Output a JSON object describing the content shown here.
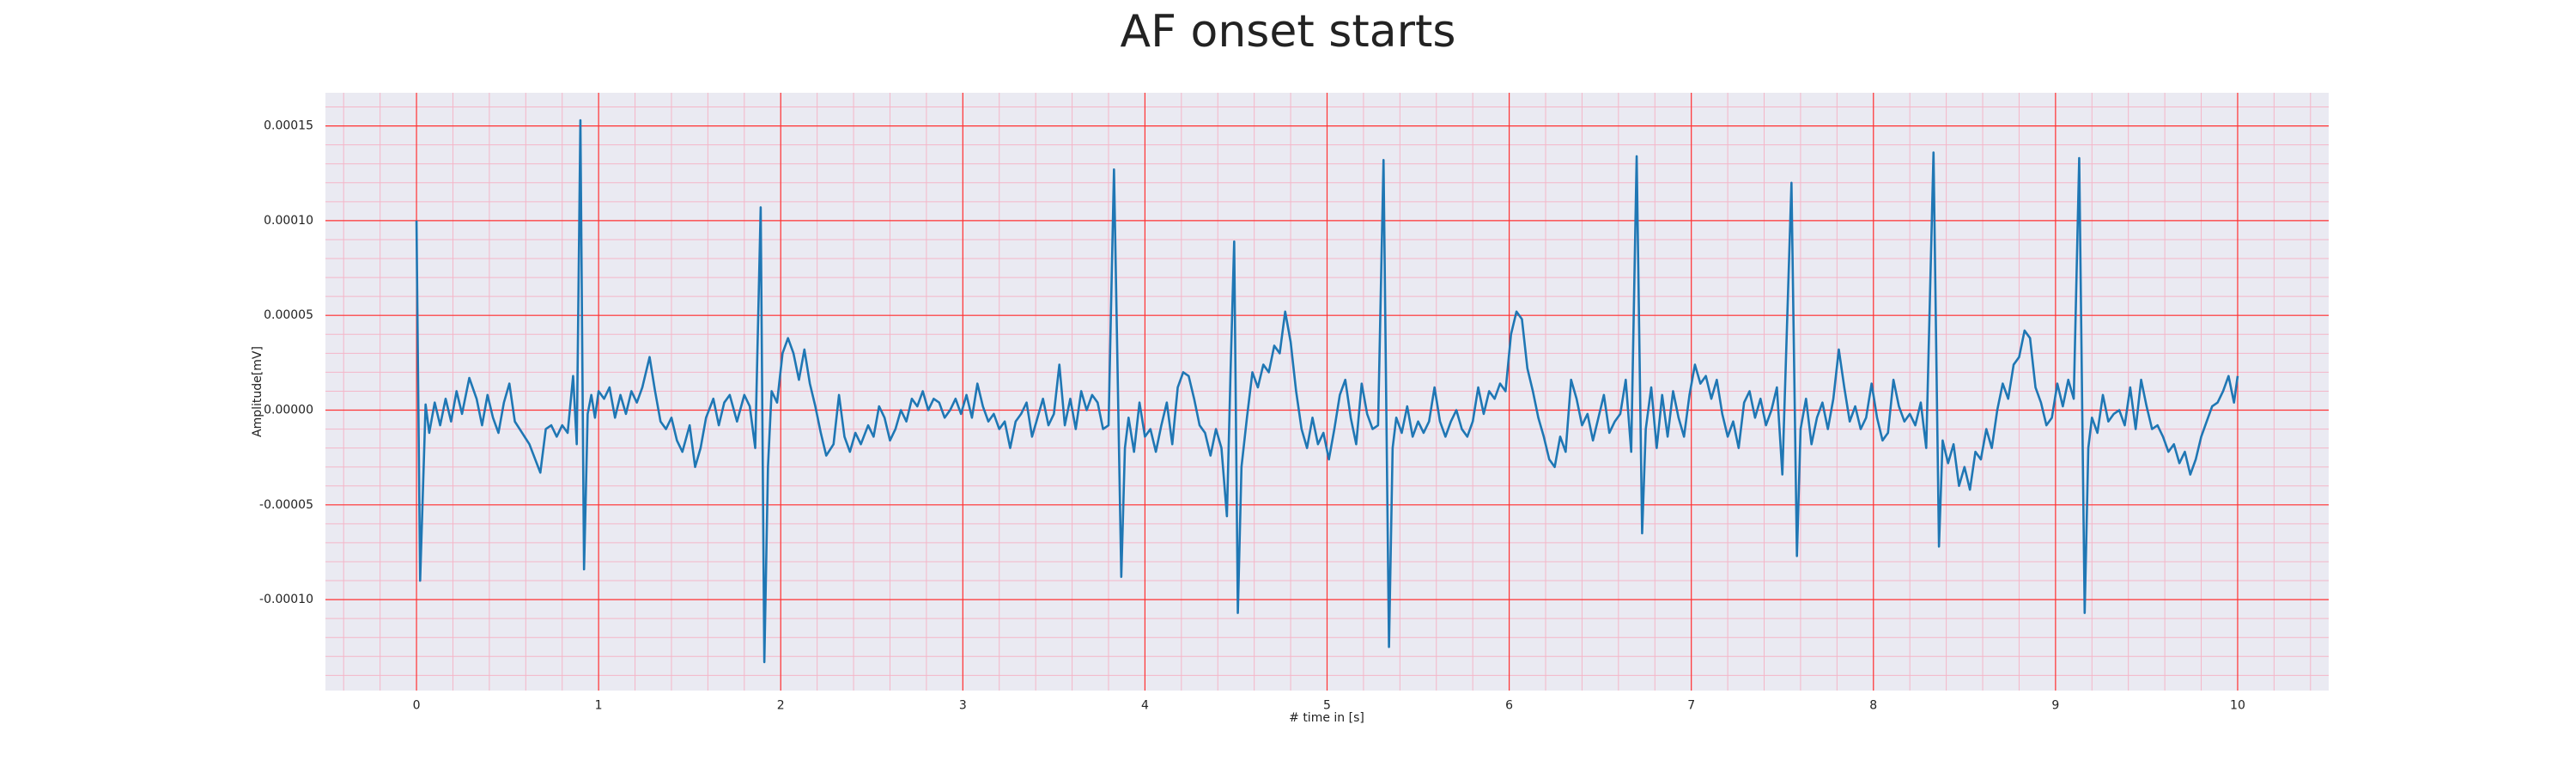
{
  "chart_data": {
    "type": "line",
    "title": "AF onset starts",
    "xlabel": "# time in [s]",
    "ylabel": "Amplitude[mV]",
    "color": "#1f77b4",
    "grid": true,
    "grid_color": "#ff3333",
    "minor_grid_color": "#f4b6c8",
    "background": "#eaeaf2",
    "xlim": [
      -0.5,
      10.5
    ],
    "ylim": [
      -0.000148,
      0.0001675
    ],
    "xticks": [
      0,
      1,
      2,
      3,
      4,
      5,
      6,
      7,
      8,
      9,
      10
    ],
    "yticks": [
      {
        "value": -0.0001,
        "label": "-0.00010"
      },
      -5e-05,
      {
        "value": 0,
        "label": "0.00000"
      },
      5e-05,
      {
        "value": 0.0001,
        "label": "0.00010"
      },
      0.00015
    ],
    "xminor_ticks": [
      -0.4,
      -0.2,
      0,
      0.2,
      0.4,
      0.6,
      0.8,
      1,
      1.2,
      1.4,
      1.6,
      1.8,
      2,
      2.2,
      2.4,
      2.6,
      2.8,
      3,
      3.2,
      3.4,
      3.6,
      3.8,
      4,
      4.2,
      4.4,
      4.6,
      4.8,
      5,
      5.2,
      5.4,
      5.6,
      5.8,
      6,
      6.2,
      6.4,
      6.6,
      6.8,
      7,
      7.2,
      7.4,
      7.6,
      7.8,
      8,
      8.2,
      8.4,
      8.6,
      8.8,
      9,
      9.2,
      9.4,
      9.6,
      9.8,
      10,
      10.2,
      10.4
    ],
    "yminor_ticks": [
      -0.00014,
      -0.00013,
      -0.00012,
      -0.00011,
      -0.0001,
      -9e-05,
      -8e-05,
      -7e-05,
      -6e-05,
      -5e-05,
      -4e-05,
      -3e-05,
      -2e-05,
      -1e-05,
      0,
      1e-05,
      2e-05,
      3e-05,
      4e-05,
      5e-05,
      6e-05,
      7e-05,
      8e-05,
      9e-05,
      0.0001,
      0.00011,
      0.00012,
      0.00013,
      0.00014,
      0.00015,
      0.00016
    ],
    "x": [
      0.0,
      0.02,
      0.05,
      0.07,
      0.1,
      0.13,
      0.16,
      0.19,
      0.22,
      0.25,
      0.29,
      0.33,
      0.36,
      0.39,
      0.42,
      0.45,
      0.48,
      0.51,
      0.54,
      0.58,
      0.62,
      0.66,
      0.68,
      0.71,
      0.74,
      0.77,
      0.8,
      0.83,
      0.86,
      0.88,
      0.9,
      0.92,
      0.94,
      0.96,
      0.98,
      1.0,
      1.03,
      1.06,
      1.09,
      1.12,
      1.15,
      1.18,
      1.21,
      1.24,
      1.28,
      1.31,
      1.34,
      1.37,
      1.4,
      1.43,
      1.46,
      1.5,
      1.53,
      1.56,
      1.59,
      1.63,
      1.66,
      1.69,
      1.72,
      1.76,
      1.8,
      1.83,
      1.86,
      1.89,
      1.91,
      1.93,
      1.95,
      1.98,
      2.01,
      2.04,
      2.07,
      2.1,
      2.13,
      2.16,
      2.19,
      2.22,
      2.25,
      2.29,
      2.32,
      2.35,
      2.38,
      2.41,
      2.44,
      2.48,
      2.51,
      2.54,
      2.57,
      2.6,
      2.63,
      2.66,
      2.69,
      2.72,
      2.75,
      2.78,
      2.81,
      2.84,
      2.87,
      2.9,
      2.93,
      2.96,
      2.99,
      3.02,
      3.05,
      3.08,
      3.11,
      3.14,
      3.17,
      3.2,
      3.23,
      3.26,
      3.29,
      3.32,
      3.35,
      3.38,
      3.41,
      3.44,
      3.47,
      3.5,
      3.53,
      3.56,
      3.59,
      3.62,
      3.65,
      3.68,
      3.71,
      3.74,
      3.77,
      3.8,
      3.83,
      3.87,
      3.89,
      3.91,
      3.94,
      3.97,
      4.0,
      4.03,
      4.06,
      4.09,
      4.12,
      4.15,
      4.18,
      4.21,
      4.24,
      4.27,
      4.3,
      4.33,
      4.36,
      4.39,
      4.42,
      4.45,
      4.47,
      4.49,
      4.51,
      4.53,
      4.56,
      4.59,
      4.62,
      4.65,
      4.68,
      4.71,
      4.74,
      4.77,
      4.8,
      4.83,
      4.86,
      4.89,
      4.92,
      4.95,
      4.98,
      5.01,
      5.04,
      5.07,
      5.1,
      5.13,
      5.16,
      5.19,
      5.22,
      5.25,
      5.28,
      5.31,
      5.34,
      5.36,
      5.38,
      5.41,
      5.44,
      5.47,
      5.5,
      5.53,
      5.56,
      5.59,
      5.62,
      5.65,
      5.68,
      5.71,
      5.74,
      5.77,
      5.8,
      5.83,
      5.86,
      5.89,
      5.92,
      5.95,
      5.98,
      6.01,
      6.04,
      6.07,
      6.1,
      6.13,
      6.16,
      6.19,
      6.22,
      6.25,
      6.28,
      6.31,
      6.34,
      6.37,
      6.4,
      6.43,
      6.46,
      6.49,
      6.52,
      6.55,
      6.58,
      6.61,
      6.64,
      6.67,
      6.7,
      6.73,
      6.75,
      6.78,
      6.81,
      6.84,
      6.87,
      6.9,
      6.93,
      6.96,
      6.99,
      7.02,
      7.05,
      7.08,
      7.11,
      7.14,
      7.17,
      7.2,
      7.23,
      7.26,
      7.29,
      7.32,
      7.35,
      7.38,
      7.41,
      7.44,
      7.47,
      7.5,
      7.55,
      7.58,
      7.6,
      7.63,
      7.66,
      7.69,
      7.72,
      7.75,
      7.78,
      7.81,
      7.84,
      7.87,
      7.9,
      7.93,
      7.96,
      7.99,
      8.02,
      8.05,
      8.08,
      8.11,
      8.14,
      8.17,
      8.2,
      8.23,
      8.26,
      8.29,
      8.33,
      8.36,
      8.38,
      8.41,
      8.44,
      8.47,
      8.5,
      8.53,
      8.56,
      8.59,
      8.62,
      8.65,
      8.68,
      8.71,
      8.74,
      8.77,
      8.8,
      8.83,
      8.86,
      8.89,
      8.92,
      8.95,
      8.98,
      9.01,
      9.04,
      9.07,
      9.1,
      9.13,
      9.16,
      9.18,
      9.2,
      9.23,
      9.26,
      9.29,
      9.32,
      9.35,
      9.38,
      9.41,
      9.44,
      9.47,
      9.5,
      9.53,
      9.56,
      9.59,
      9.62,
      9.65,
      9.68,
      9.71,
      9.74,
      9.77,
      9.8,
      9.83,
      9.86,
      9.89,
      9.92,
      9.95,
      9.98,
      10.0
    ],
    "values": [
      0.0001,
      -9e-05,
      3e-06,
      -1.2e-05,
      4e-06,
      -8e-06,
      6e-06,
      -6e-06,
      1e-05,
      -2e-06,
      1.7e-05,
      6e-06,
      -8e-06,
      8e-06,
      -4e-06,
      -1.2e-05,
      4e-06,
      1.4e-05,
      -6e-06,
      -1.2e-05,
      -1.8e-05,
      -2.8e-05,
      -3.3e-05,
      -1e-05,
      -8e-06,
      -1.4e-05,
      -8e-06,
      -1.2e-05,
      1.8e-05,
      -1.8e-05,
      0.000153,
      -8.4e-05,
      -2e-06,
      8e-06,
      -4e-06,
      1e-05,
      6e-06,
      1.2e-05,
      -4e-06,
      8e-06,
      -2e-06,
      1e-05,
      4e-06,
      1.2e-05,
      2.8e-05,
      1e-05,
      -6e-06,
      -1e-05,
      -4e-06,
      -1.6e-05,
      -2.2e-05,
      -8e-06,
      -3e-05,
      -2e-05,
      -4e-06,
      6e-06,
      -8e-06,
      4e-06,
      8e-06,
      -6e-06,
      8e-06,
      2e-06,
      -2e-05,
      0.000107,
      -0.000133,
      -3e-05,
      1e-05,
      4e-06,
      3e-05,
      3.8e-05,
      3e-05,
      1.6e-05,
      3.2e-05,
      1.4e-05,
      2e-06,
      -1.2e-05,
      -2.4e-05,
      -1.8e-05,
      8e-06,
      -1.4e-05,
      -2.2e-05,
      -1.2e-05,
      -1.8e-05,
      -8e-06,
      -1.4e-05,
      2e-06,
      -4e-06,
      -1.6e-05,
      -1e-05,
      0,
      -6e-06,
      6e-06,
      2e-06,
      1e-05,
      0,
      6e-06,
      4e-06,
      -4e-06,
      0,
      6e-06,
      -2e-06,
      8e-06,
      -4e-06,
      1.4e-05,
      2e-06,
      -6e-06,
      -2e-06,
      -1e-05,
      -6e-06,
      -2e-05,
      -6e-06,
      -2e-06,
      4e-06,
      -1.4e-05,
      -4e-06,
      6e-06,
      -8e-06,
      -2e-06,
      2.4e-05,
      -8e-06,
      6e-06,
      -1e-05,
      1e-05,
      0,
      8e-06,
      4e-06,
      -1e-05,
      -8e-06,
      0.000127,
      -8.8e-05,
      -2e-05,
      -4e-06,
      -2.2e-05,
      4e-06,
      -1.4e-05,
      -1e-05,
      -2.2e-05,
      -8e-06,
      4e-06,
      -1.8e-05,
      1.2e-05,
      2e-05,
      1.8e-05,
      6e-06,
      -8e-06,
      -1.2e-05,
      -2.4e-05,
      -1e-05,
      -2e-05,
      -5.6e-05,
      2e-05,
      8.9e-05,
      -0.000107,
      -3e-05,
      -4e-06,
      2e-05,
      1.2e-05,
      2.4e-05,
      2e-05,
      3.4e-05,
      3e-05,
      5.2e-05,
      3.6e-05,
      1e-05,
      -1e-05,
      -2e-05,
      -4e-06,
      -1.8e-05,
      -1.2e-05,
      -2.6e-05,
      -1e-05,
      8e-06,
      1.6e-05,
      -4e-06,
      -1.8e-05,
      1.4e-05,
      -2e-06,
      -1e-05,
      -8e-06,
      0.000132,
      -0.000125,
      -2e-05,
      -4e-06,
      -1.2e-05,
      2e-06,
      -1.4e-05,
      -6e-06,
      -1.2e-05,
      -6e-06,
      1.2e-05,
      -6e-06,
      -1.4e-05,
      -6e-06,
      0,
      -1e-05,
      -1.4e-05,
      -6e-06,
      1.2e-05,
      -2e-06,
      1e-05,
      6e-06,
      1.4e-05,
      1e-05,
      4e-05,
      5.2e-05,
      4.8e-05,
      2.2e-05,
      1e-05,
      -4e-06,
      -1.4e-05,
      -2.6e-05,
      -3e-05,
      -1.4e-05,
      -2.2e-05,
      1.6e-05,
      6e-06,
      -8e-06,
      -2e-06,
      -1.6e-05,
      -4e-06,
      8e-06,
      -1.2e-05,
      -6e-06,
      -2e-06,
      1.6e-05,
      -2.2e-05,
      0.000134,
      -6.5e-05,
      -1e-05,
      1.2e-05,
      -2e-05,
      8e-06,
      -1.4e-05,
      1e-05,
      -4e-06,
      -1.4e-05,
      8e-06,
      2.4e-05,
      1.4e-05,
      1.8e-05,
      6e-06,
      1.6e-05,
      -2e-06,
      -1.4e-05,
      -6e-06,
      -2e-05,
      4e-06,
      1e-05,
      -4e-06,
      6e-06,
      -8e-06,
      0,
      1.2e-05,
      -3.4e-05,
      0.00012,
      -7.7e-05,
      -1e-05,
      6e-06,
      -1.8e-05,
      -4e-06,
      4e-06,
      -1e-05,
      6e-06,
      3.2e-05,
      1.2e-05,
      -6e-06,
      2e-06,
      -1e-05,
      -4e-06,
      1.4e-05,
      -4e-06,
      -1.6e-05,
      -1.2e-05,
      1.6e-05,
      2e-06,
      -6e-06,
      -2e-06,
      -8e-06,
      4e-06,
      -2e-05,
      0.000136,
      -7.2e-05,
      -1.6e-05,
      -2.8e-05,
      -1.8e-05,
      -4e-05,
      -3e-05,
      -4.2e-05,
      -2.2e-05,
      -2.6e-05,
      -1e-05,
      -2e-05,
      0,
      1.4e-05,
      6e-06,
      2.4e-05,
      2.8e-05,
      4.2e-05,
      3.8e-05,
      1.2e-05,
      4e-06,
      -8e-06,
      -4e-06,
      1.4e-05,
      2e-06,
      1.6e-05,
      6e-06,
      0.000133,
      -0.000107,
      -2e-05,
      -4e-06,
      -1.2e-05,
      8e-06,
      -6e-06,
      -2e-06,
      0,
      -8e-06,
      1.2e-05,
      -1e-05,
      1.6e-05,
      2e-06,
      -1e-05,
      -8e-06,
      -1.4e-05,
      -2.2e-05,
      -1.8e-05,
      -2.8e-05,
      -2.2e-05,
      -3.4e-05,
      -2.6e-05,
      -1.4e-05,
      -6e-06,
      2e-06,
      4e-06,
      1e-05,
      1.8e-05,
      4e-06,
      1.8e-05
    ]
  }
}
